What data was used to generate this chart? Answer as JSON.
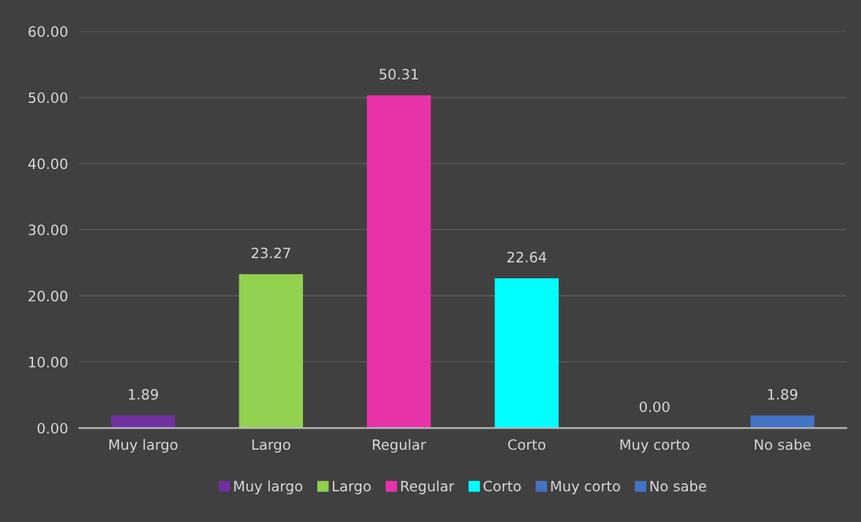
{
  "chart_data": {
    "type": "bar",
    "categories": [
      "Muy largo",
      "Largo",
      "Regular",
      "Corto",
      "Muy corto",
      "No sabe"
    ],
    "series": [
      {
        "name": "Muy largo",
        "color": "#7030a0",
        "values": [
          1.89,
          null,
          null,
          null,
          null,
          null
        ],
        "value_labels": [
          "1.89",
          null,
          null,
          null,
          null,
          null
        ]
      },
      {
        "name": "Largo",
        "color": "#92d050",
        "values": [
          null,
          23.27,
          null,
          null,
          null,
          null
        ],
        "value_labels": [
          null,
          "23.27",
          null,
          null,
          null,
          null
        ]
      },
      {
        "name": "Regular",
        "color": "#e832a8",
        "values": [
          null,
          null,
          50.31,
          null,
          null,
          null
        ],
        "value_labels": [
          null,
          null,
          "50.31",
          null,
          null,
          null
        ]
      },
      {
        "name": "Corto",
        "color": "#00ffff",
        "values": [
          null,
          null,
          null,
          22.64,
          null,
          null
        ],
        "value_labels": [
          null,
          null,
          null,
          "22.64",
          null,
          null
        ]
      },
      {
        "name": "Muy corto",
        "color": "#4472c4",
        "values": [
          null,
          null,
          null,
          null,
          0.0,
          null
        ],
        "value_labels": [
          null,
          null,
          null,
          null,
          "0.00",
          null
        ]
      },
      {
        "name": "No sabe",
        "color": "#4472c4",
        "values": [
          null,
          null,
          null,
          null,
          null,
          1.89
        ],
        "value_labels": [
          null,
          null,
          null,
          null,
          null,
          "1.89"
        ]
      }
    ],
    "ylim": [
      0,
      60
    ],
    "yticks": [
      {
        "value": 0,
        "label": "0.00"
      },
      {
        "value": 10,
        "label": "10.00"
      },
      {
        "value": 20,
        "label": "20.00"
      },
      {
        "value": 30,
        "label": "30.00"
      },
      {
        "value": 40,
        "label": "40.00"
      },
      {
        "value": 50,
        "label": "50.00"
      },
      {
        "value": 60,
        "label": "60.00"
      }
    ],
    "grid": "y",
    "legend": "bottom"
  }
}
